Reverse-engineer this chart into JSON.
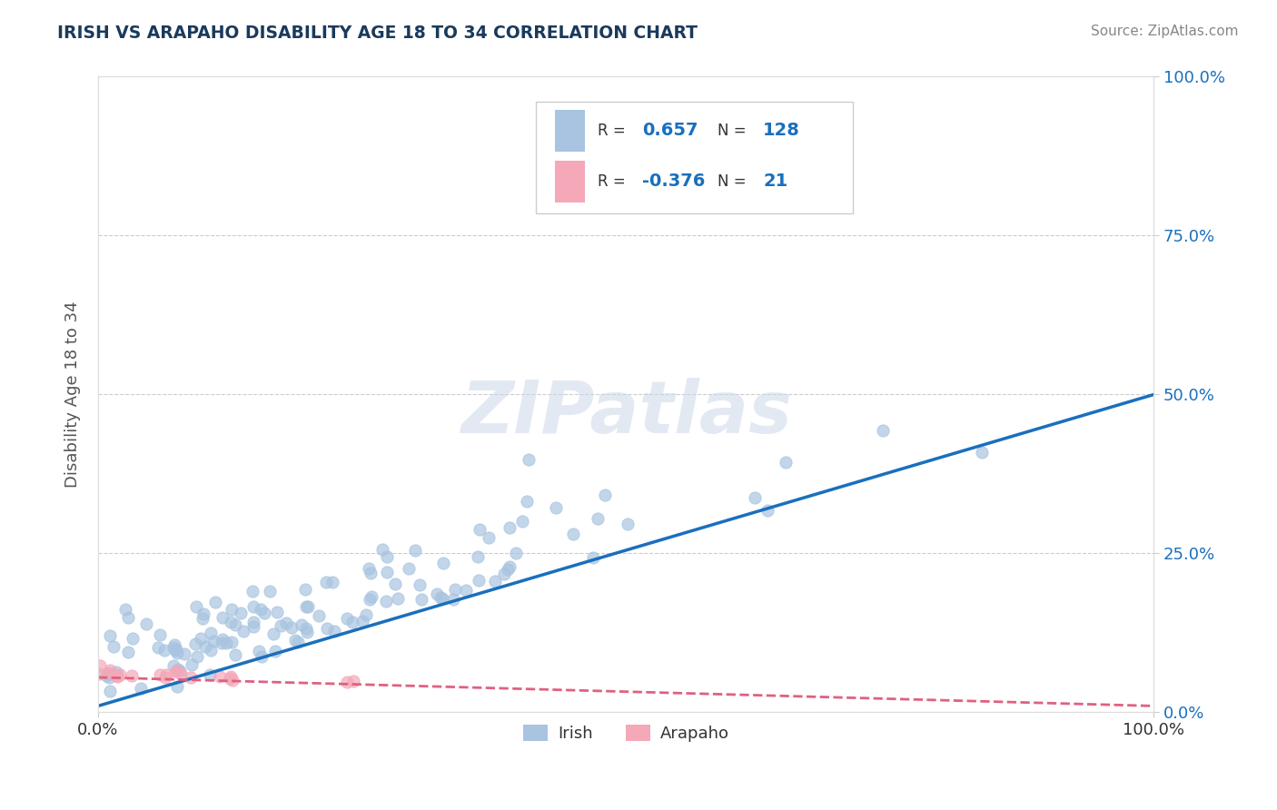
{
  "title": "IRISH VS ARAPAHO DISABILITY AGE 18 TO 34 CORRELATION CHART",
  "source": "Source: ZipAtlas.com",
  "ylabel": "Disability Age 18 to 34",
  "xlim": [
    0,
    1
  ],
  "ylim": [
    0,
    1
  ],
  "ytick_labels": [
    "0.0%",
    "25.0%",
    "50.0%",
    "75.0%",
    "100.0%"
  ],
  "ytick_values": [
    0.0,
    0.25,
    0.5,
    0.75,
    1.0
  ],
  "xtick_labels": [
    "0.0%",
    "100.0%"
  ],
  "xtick_values": [
    0.0,
    1.0
  ],
  "watermark": "ZIPatlas",
  "legend_irish_r": "0.657",
  "legend_irish_n": "128",
  "legend_arapaho_r": "-0.376",
  "legend_arapaho_n": "21",
  "irish_color": "#a8c4e0",
  "arapaho_color": "#f4a8b8",
  "irish_line_color": "#1a6fbd",
  "arapaho_line_color": "#e06080",
  "title_color": "#1a3a5c",
  "source_color": "#888888",
  "background_color": "#ffffff",
  "grid_color": "#cccccc",
  "irish_line_x": [
    0.0,
    1.0
  ],
  "irish_line_y": [
    0.01,
    0.5
  ],
  "arapaho_line_x": [
    0.0,
    1.0
  ],
  "arapaho_line_y": [
    0.055,
    0.01
  ]
}
